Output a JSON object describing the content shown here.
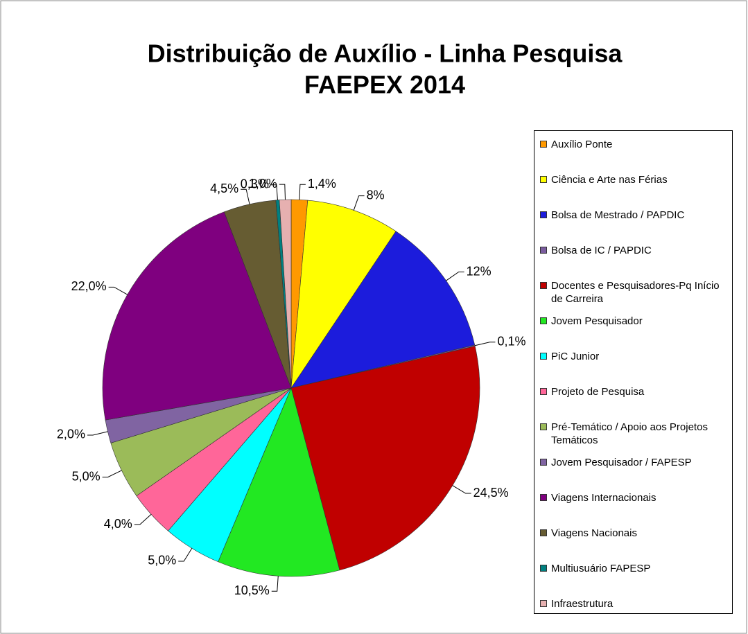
{
  "chart_data": {
    "type": "pie",
    "title": "Distribuição de Auxílio - Linha Pesquisa",
    "subtitle": "FAEPEX 2014",
    "categories": [
      "Auxílio Ponte",
      "Ciência e Arte nas Férias",
      "Bolsa de Mestrado / PAPDIC",
      "Bolsa de IC / PAPDIC",
      "Docentes e Pesquisadores-Pq Início de Carreira",
      "Jovem Pesquisador",
      "PiC Junior",
      "Projeto de Pesquisa",
      "Pré-Temático / Apoio aos Projetos Temáticos",
      "Jovem Pesquisador / FAPESP",
      "Viagens Internacionais",
      "Viagens Nacionais",
      "Multiusuário FAPESP",
      "Infraestrutura"
    ],
    "values": [
      1.4,
      8,
      12,
      0.1,
      24.5,
      10.5,
      5.0,
      4.0,
      5.0,
      2.0,
      22.0,
      4.5,
      0.3,
      1.0
    ],
    "value_labels": [
      "1,4%",
      "8%",
      "12%",
      "0,1%",
      "24,5%",
      "10,5%",
      "5,0%",
      "4,0%",
      "5,0%",
      "2,0%",
      "22,0%",
      "4,5%",
      "0,3%",
      "1,0%"
    ],
    "colors": [
      "#ff9900",
      "#ffff00",
      "#1c1cdc",
      "#7a5c9e",
      "#c00000",
      "#22e822",
      "#00ffff",
      "#ff6699",
      "#9bbb59",
      "#8064a2",
      "#7f007f",
      "#665c32",
      "#008080",
      "#e6b0b0"
    ],
    "legend": "right"
  }
}
